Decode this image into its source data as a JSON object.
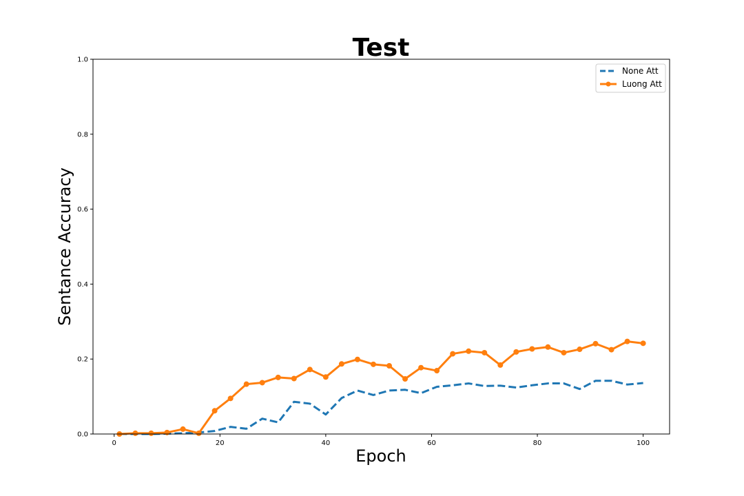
{
  "chart_data": {
    "type": "line",
    "title": "Test",
    "xlabel": "Epoch",
    "ylabel": "Sentance Accuracy",
    "xlim": [
      -4,
      105
    ],
    "ylim": [
      0.0,
      1.0
    ],
    "xticks": [
      0,
      20,
      40,
      60,
      80,
      100
    ],
    "xtick_labels": [
      "0",
      "20",
      "40",
      "60",
      "80",
      "100"
    ],
    "yticks": [
      0.0,
      0.2,
      0.4,
      0.6,
      0.8,
      1.0
    ],
    "ytick_labels": [
      "0.0",
      "0.2",
      "0.4",
      "0.6",
      "0.8",
      "1.0"
    ],
    "grid": false,
    "legend_position": "top-right",
    "x": [
      1,
      4,
      7,
      10,
      13,
      16,
      19,
      22,
      25,
      28,
      31,
      34,
      37,
      40,
      43,
      46,
      49,
      52,
      55,
      58,
      61,
      64,
      67,
      70,
      73,
      76,
      79,
      82,
      85,
      88,
      91,
      94,
      97,
      100
    ],
    "series": [
      {
        "name": "None Att",
        "color": "#1f77b4",
        "style": "dashed",
        "marker": "none",
        "values": [
          0.0,
          0.0,
          0.0,
          0.001,
          0.002,
          0.004,
          0.008,
          0.019,
          0.014,
          0.041,
          0.031,
          0.086,
          0.081,
          0.052,
          0.096,
          0.116,
          0.104,
          0.116,
          0.118,
          0.109,
          0.126,
          0.13,
          0.135,
          0.128,
          0.129,
          0.124,
          0.13,
          0.135,
          0.135,
          0.12,
          0.142,
          0.142,
          0.132,
          0.136
        ]
      },
      {
        "name": "Luong Att",
        "color": "#ff7f0e",
        "style": "solid",
        "marker": "circle",
        "values": [
          0.0,
          0.002,
          0.002,
          0.004,
          0.013,
          0.002,
          0.062,
          0.095,
          0.133,
          0.137,
          0.151,
          0.148,
          0.172,
          0.152,
          0.187,
          0.199,
          0.186,
          0.182,
          0.147,
          0.177,
          0.169,
          0.214,
          0.221,
          0.217,
          0.184,
          0.219,
          0.227,
          0.232,
          0.217,
          0.226,
          0.241,
          0.225,
          0.247,
          0.242
        ]
      }
    ]
  }
}
